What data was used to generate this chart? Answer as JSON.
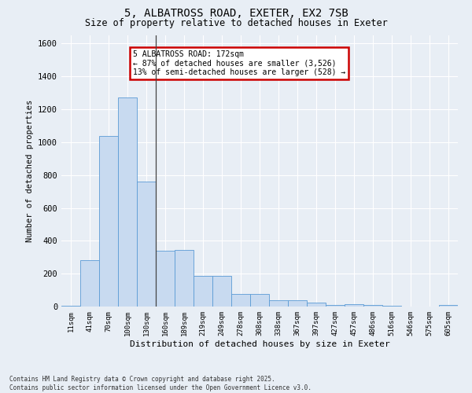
{
  "title1": "5, ALBATROSS ROAD, EXETER, EX2 7SB",
  "title2": "Size of property relative to detached houses in Exeter",
  "xlabel": "Distribution of detached houses by size in Exeter",
  "ylabel": "Number of detached properties",
  "bar_color": "#c8daf0",
  "bar_edge_color": "#5b9bd5",
  "categories": [
    "11sqm",
    "41sqm",
    "70sqm",
    "100sqm",
    "130sqm",
    "160sqm",
    "189sqm",
    "219sqm",
    "249sqm",
    "278sqm",
    "308sqm",
    "338sqm",
    "367sqm",
    "397sqm",
    "427sqm",
    "457sqm",
    "486sqm",
    "516sqm",
    "546sqm",
    "575sqm",
    "605sqm"
  ],
  "values": [
    5,
    280,
    1040,
    1270,
    760,
    340,
    345,
    185,
    185,
    75,
    75,
    38,
    38,
    22,
    10,
    12,
    10,
    5,
    0,
    0,
    10
  ],
  "ylim": [
    0,
    1650
  ],
  "yticks": [
    0,
    200,
    400,
    600,
    800,
    1000,
    1200,
    1400,
    1600
  ],
  "annotation_text": "5 ALBATROSS ROAD: 172sqm\n← 87% of detached houses are smaller (3,526)\n13% of semi-detached houses are larger (528) →",
  "vline_x": 4.5,
  "bg_color": "#e8eef5",
  "plot_bg_color": "#e8eef5",
  "grid_color": "#ffffff",
  "annotation_box_color": "#cc0000",
  "footer": "Contains HM Land Registry data © Crown copyright and database right 2025.\nContains public sector information licensed under the Open Government Licence v3.0."
}
